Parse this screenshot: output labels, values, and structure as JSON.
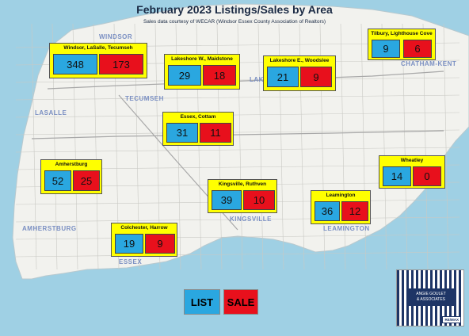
{
  "title": "February 2023 Listings/Sales by Area",
  "subtitle": "Sales data courtesy of WECAR (Windsor Essex County Association of Realtors)",
  "colors": {
    "list": "#2aa7e0",
    "sale": "#e8101c",
    "panel": "#ffff00",
    "water": "#9fd0e4",
    "land": "#f2f2ee"
  },
  "place_labels": [
    "WINDSOR",
    "TECUMSEH",
    "LASALLE",
    "AMHERSTBURG",
    "ESSEX",
    "KINGSVILLE",
    "LEAMINGTON",
    "CHATHAM-KENT",
    "LAK"
  ],
  "areas": [
    {
      "name": "Windsor, LaSalle, Tecumseh",
      "listings": "348",
      "sales": "173"
    },
    {
      "name": "Lakeshore W., Maidstone",
      "listings": "29",
      "sales": "18"
    },
    {
      "name": "Lakeshore E., Woodslee",
      "listings": "21",
      "sales": "9"
    },
    {
      "name": "Tilbury, Lighthouse Cove",
      "listings": "9",
      "sales": "6"
    },
    {
      "name": "Essex, Cottam",
      "listings": "31",
      "sales": "11"
    },
    {
      "name": "Amherstburg",
      "listings": "52",
      "sales": "25"
    },
    {
      "name": "Wheatley",
      "listings": "14",
      "sales": "0"
    },
    {
      "name": "Kingsville, Ruthven",
      "listings": "39",
      "sales": "10"
    },
    {
      "name": "Leamington",
      "listings": "36",
      "sales": "12"
    },
    {
      "name": "Colchester, Harrow",
      "listings": "19",
      "sales": "9"
    }
  ],
  "legend": {
    "list_label": "LIST",
    "sale_label": "SALE"
  },
  "logo": {
    "line1": "ANGIE GOULET",
    "line2": "& ASSOCIATES",
    "brand": "RE/MAX"
  }
}
